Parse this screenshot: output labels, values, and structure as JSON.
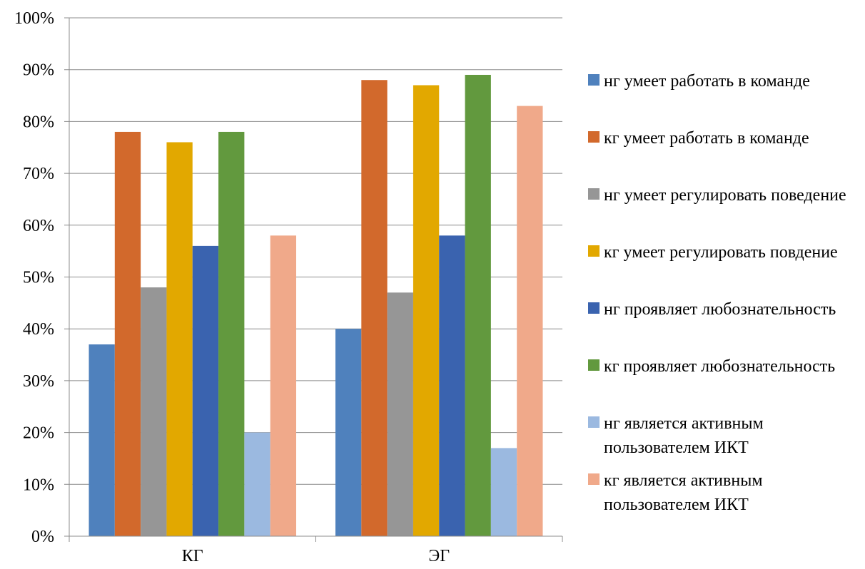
{
  "chart_data": {
    "type": "bar",
    "categories": [
      "КГ",
      "ЭГ"
    ],
    "series": [
      {
        "name": "нг умеет работать в команде",
        "color": "#4F81BD",
        "values": [
          37,
          40
        ]
      },
      {
        "name": "кг умеет работать в команде",
        "color": "#D2692C",
        "values": [
          78,
          88
        ]
      },
      {
        "name": "нг умеет регулировать поведение",
        "color": "#969696",
        "values": [
          48,
          47
        ]
      },
      {
        "name": "кг умеет регулировать повдение",
        "color": "#E2A800",
        "values": [
          76,
          87
        ]
      },
      {
        "name": "нг проявляет любознательность",
        "color": "#3A63AF",
        "values": [
          56,
          58
        ]
      },
      {
        "name": "кг проявляет любознательность",
        "color": "#62993E",
        "values": [
          78,
          89
        ]
      },
      {
        "name": "нг является активным пользователем ИКТ",
        "color": "#9BB9E0",
        "values": [
          20,
          17
        ]
      },
      {
        "name": "кг является активным пользователем ИКТ",
        "color": "#F0A98A",
        "values": [
          58,
          83
        ]
      }
    ],
    "ylim": [
      0,
      100
    ],
    "yticks": [
      "0%",
      "10%",
      "20%",
      "30%",
      "40%",
      "50%",
      "60%",
      "70%",
      "80%",
      "90%",
      "100%"
    ],
    "grid": true,
    "legend_position": "right",
    "title": "",
    "xlabel": "",
    "ylabel": ""
  }
}
